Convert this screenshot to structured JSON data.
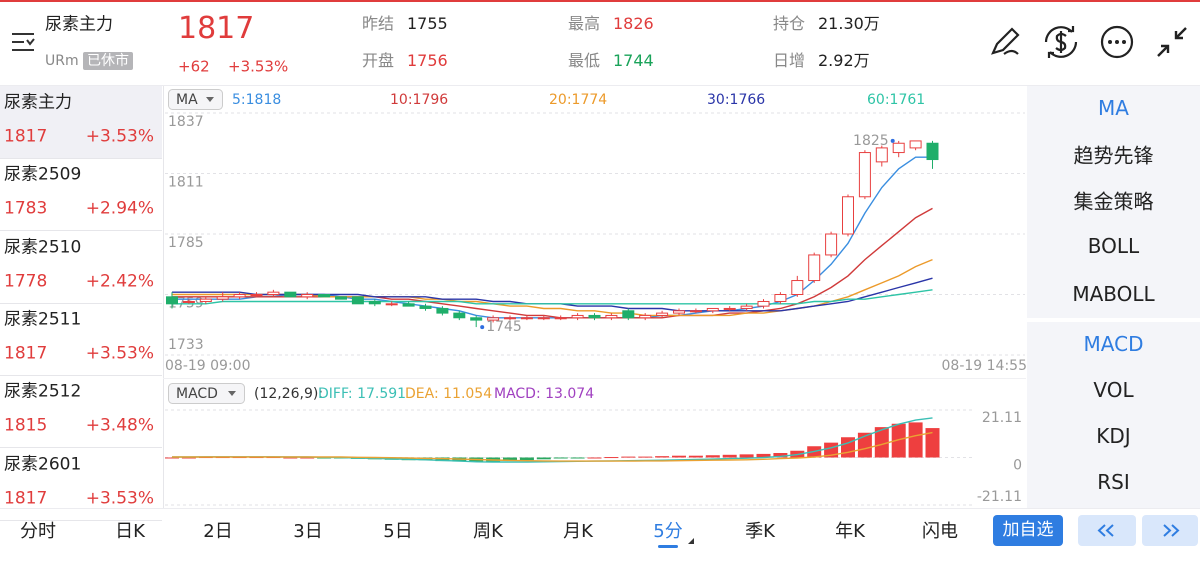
{
  "header": {
    "name": "尿素主力",
    "code": "URm",
    "status": "已休市",
    "price": "1817",
    "change": "+62",
    "change_pct": "+3.53%",
    "stats": [
      {
        "label": "昨结",
        "value": "1755"
      },
      {
        "label": "开盘",
        "value": "1756"
      },
      {
        "label": "最高",
        "value": "1826"
      },
      {
        "label": "最低",
        "value": "1744"
      },
      {
        "label": "持仓",
        "value": "21.30万"
      },
      {
        "label": "日增",
        "value": "2.92万"
      }
    ]
  },
  "watchlist": [
    {
      "name": "尿素主力",
      "price": "1817",
      "pct": "+3.53%"
    },
    {
      "name": "尿素2509",
      "price": "1783",
      "pct": "+2.94%"
    },
    {
      "name": "尿素2510",
      "price": "1778",
      "pct": "+2.42%"
    },
    {
      "name": "尿素2511",
      "price": "1817",
      "pct": "+3.53%"
    },
    {
      "name": "尿素2512",
      "price": "1815",
      "pct": "+3.48%"
    },
    {
      "name": "尿素2601",
      "price": "1817",
      "pct": "+3.53%"
    }
  ],
  "chart_data": [
    {
      "type": "candlestick",
      "indicator": "MA",
      "ylim": [
        1733,
        1837
      ],
      "yticks": [
        1733,
        1759,
        1785,
        1811,
        1837
      ],
      "grid": true,
      "up_color": "#e84040",
      "down_color": "#1fae6a",
      "high_label": 1825,
      "low_label": 1745,
      "categories": [
        "08-19 09:00",
        null,
        null,
        null,
        null,
        null,
        null,
        null,
        null,
        null,
        null,
        null,
        null,
        null,
        null,
        null,
        null,
        null,
        null,
        null,
        null,
        null,
        null,
        null,
        null,
        null,
        null,
        null,
        null,
        null,
        null,
        null,
        null,
        null,
        null,
        null,
        null,
        null,
        null,
        null,
        null,
        null,
        null,
        null,
        null,
        "08-19 14:55"
      ],
      "ohlc": [
        [
          1758,
          1760,
          1753,
          1755
        ],
        [
          1756,
          1757,
          1755,
          1756
        ],
        [
          1756,
          1758,
          1755,
          1757
        ],
        [
          1757,
          1760,
          1756,
          1758
        ],
        [
          1758,
          1760,
          1757,
          1759
        ],
        [
          1759,
          1760,
          1758,
          1759
        ],
        [
          1759,
          1761,
          1758,
          1760
        ],
        [
          1760,
          1760,
          1758,
          1758
        ],
        [
          1758,
          1760,
          1757,
          1759
        ],
        [
          1759,
          1759,
          1758,
          1758
        ],
        [
          1758,
          1758,
          1757,
          1757
        ],
        [
          1758,
          1758,
          1755,
          1755
        ],
        [
          1756,
          1757,
          1754,
          1755
        ],
        [
          1755,
          1756,
          1754,
          1755
        ],
        [
          1755,
          1756,
          1754,
          1754
        ],
        [
          1754,
          1755,
          1752,
          1753
        ],
        [
          1753,
          1754,
          1750,
          1751
        ],
        [
          1751,
          1752,
          1748,
          1749
        ],
        [
          1749,
          1750,
          1745,
          1748
        ],
        [
          1748,
          1750,
          1747,
          1749
        ],
        [
          1749,
          1750,
          1748,
          1749
        ],
        [
          1749,
          1750,
          1748,
          1749
        ],
        [
          1749,
          1750,
          1748,
          1749
        ],
        [
          1749,
          1750,
          1748,
          1749
        ],
        [
          1749,
          1751,
          1748,
          1750
        ],
        [
          1750,
          1751,
          1748,
          1749
        ],
        [
          1749,
          1751,
          1748,
          1750
        ],
        [
          1752,
          1753,
          1748,
          1749
        ],
        [
          1749,
          1751,
          1748,
          1750
        ],
        [
          1750,
          1752,
          1749,
          1751
        ],
        [
          1751,
          1753,
          1750,
          1752
        ],
        [
          1752,
          1753,
          1751,
          1752
        ],
        [
          1752,
          1753,
          1751,
          1753
        ],
        [
          1753,
          1754,
          1752,
          1753
        ],
        [
          1753,
          1755,
          1752,
          1754
        ],
        [
          1754,
          1757,
          1753,
          1756
        ],
        [
          1756,
          1760,
          1755,
          1759
        ],
        [
          1759,
          1767,
          1758,
          1765
        ],
        [
          1765,
          1777,
          1764,
          1776
        ],
        [
          1776,
          1786,
          1775,
          1785
        ],
        [
          1785,
          1802,
          1784,
          1801
        ],
        [
          1801,
          1821,
          1800,
          1820
        ],
        [
          1816,
          1823,
          1814,
          1822
        ],
        [
          1820,
          1825,
          1818,
          1824
        ],
        [
          1822,
          1825,
          1821,
          1825
        ],
        [
          1824,
          1825,
          1813,
          1817
        ]
      ],
      "series": [
        {
          "name": "5:1818",
          "color": "#3a8ee0",
          "values": [
            1757,
            1757,
            1757,
            1757,
            1757,
            1758,
            1758,
            1759,
            1759,
            1759,
            1758,
            1757,
            1757,
            1756,
            1755,
            1754,
            1753,
            1752,
            1750,
            1749,
            1749,
            1749,
            1749,
            1749,
            1749,
            1749,
            1749,
            1749,
            1749,
            1750,
            1750,
            1751,
            1752,
            1752,
            1753,
            1754,
            1756,
            1759,
            1765,
            1772,
            1781,
            1794,
            1805,
            1813,
            1818,
            1818
          ]
        },
        {
          "name": "10:1796",
          "color": "#d03a3a",
          "values": [
            1758,
            1758,
            1758,
            1758,
            1758,
            1758,
            1758,
            1758,
            1758,
            1758,
            1758,
            1758,
            1758,
            1757,
            1757,
            1756,
            1755,
            1754,
            1753,
            1752,
            1751,
            1750,
            1750,
            1749,
            1749,
            1749,
            1749,
            1749,
            1749,
            1749,
            1750,
            1750,
            1750,
            1751,
            1751,
            1752,
            1753,
            1755,
            1758,
            1762,
            1767,
            1774,
            1780,
            1786,
            1792,
            1796
          ]
        },
        {
          "name": "20:1774",
          "color": "#ec9a2a",
          "values": [
            1759,
            1759,
            1759,
            1759,
            1759,
            1759,
            1759,
            1759,
            1759,
            1758,
            1758,
            1758,
            1758,
            1758,
            1758,
            1757,
            1757,
            1756,
            1756,
            1755,
            1754,
            1754,
            1753,
            1753,
            1752,
            1752,
            1751,
            1751,
            1750,
            1750,
            1750,
            1750,
            1750,
            1750,
            1751,
            1751,
            1752,
            1753,
            1754,
            1756,
            1758,
            1761,
            1764,
            1767,
            1771,
            1774
          ]
        },
        {
          "name": "30:1766",
          "color": "#2a35a8",
          "values": [
            1760,
            1760,
            1760,
            1760,
            1760,
            1759,
            1759,
            1759,
            1759,
            1759,
            1759,
            1759,
            1758,
            1758,
            1758,
            1758,
            1757,
            1757,
            1757,
            1756,
            1756,
            1755,
            1755,
            1755,
            1754,
            1754,
            1754,
            1753,
            1753,
            1753,
            1752,
            1752,
            1752,
            1752,
            1752,
            1752,
            1752,
            1753,
            1754,
            1755,
            1756,
            1758,
            1760,
            1762,
            1764,
            1766
          ]
        },
        {
          "name": "60:1761",
          "color": "#2ec4a6",
          "values": [
            1755,
            1755,
            1755,
            1756,
            1756,
            1756,
            1756,
            1756,
            1756,
            1756,
            1756,
            1756,
            1756,
            1756,
            1756,
            1756,
            1756,
            1756,
            1755,
            1755,
            1755,
            1755,
            1755,
            1755,
            1755,
            1755,
            1755,
            1755,
            1755,
            1755,
            1755,
            1755,
            1755,
            1755,
            1755,
            1755,
            1755,
            1755,
            1756,
            1756,
            1757,
            1757,
            1758,
            1759,
            1760,
            1761
          ]
        }
      ]
    },
    {
      "type": "macd",
      "indicator": "MACD",
      "params": "(12,26,9):",
      "ylim": [
        -21.11,
        21.11
      ],
      "yticks": [
        -21.11,
        0,
        21.11
      ],
      "grid": true,
      "up_color": "#ee3f3f",
      "down_color": "#2aa860",
      "series": [
        {
          "name": "DIFF: 17.591",
          "color": "#3bbfb5",
          "kind": "line",
          "values": [
            0.2,
            0.2,
            0.3,
            0.3,
            0.3,
            0.3,
            0.3,
            0.2,
            0.2,
            0.1,
            0,
            -0.2,
            -0.4,
            -0.6,
            -0.8,
            -1,
            -1.3,
            -1.6,
            -1.9,
            -2,
            -2,
            -2,
            -1.9,
            -1.8,
            -1.7,
            -1.6,
            -1.5,
            -1.4,
            -1.3,
            -1.2,
            -1,
            -0.9,
            -0.7,
            -0.5,
            -0.3,
            0,
            0.5,
            1.3,
            2.7,
            4.3,
            6.5,
            9.5,
            12.3,
            14.8,
            16.6,
            17.591
          ]
        },
        {
          "name": "DEA: 11.054",
          "color": "#eaa233",
          "kind": "line",
          "values": [
            0.2,
            0.2,
            0.2,
            0.2,
            0.2,
            0.2,
            0.2,
            0.2,
            0.2,
            0.2,
            0.2,
            0.1,
            0,
            -0.1,
            -0.2,
            -0.4,
            -0.5,
            -0.7,
            -0.9,
            -1.1,
            -1.3,
            -1.4,
            -1.5,
            -1.6,
            -1.6,
            -1.6,
            -1.6,
            -1.6,
            -1.5,
            -1.5,
            -1.4,
            -1.3,
            -1.2,
            -1.1,
            -1,
            -0.8,
            -0.5,
            -0.2,
            0.2,
            1,
            2.3,
            3.9,
            5.8,
            7.9,
            9.7,
            11.054
          ]
        },
        {
          "name": "MACD: 13.074",
          "color": "#a040c0",
          "kind": "bar",
          "values": [
            0,
            0,
            0.2,
            0.2,
            0.2,
            0.2,
            0.2,
            0,
            0,
            -0.2,
            -0.4,
            -0.6,
            -0.8,
            -1,
            -1.2,
            -1.2,
            -1.6,
            -1.8,
            -2,
            -1.8,
            -1.4,
            -1.2,
            -0.8,
            -0.4,
            -0.2,
            0,
            0.2,
            0.4,
            0.4,
            0.6,
            0.8,
            0.8,
            1,
            1.2,
            1.4,
            1.6,
            2,
            3,
            5,
            6.6,
            9,
            11,
            13.5,
            15,
            15.6,
            13.074
          ]
        }
      ]
    }
  ],
  "indicator_menu": {
    "main": [
      "MA",
      "趋势先锋",
      "集金策略",
      "BOLL",
      "MABOLL"
    ],
    "sub": [
      "MACD",
      "VOL",
      "KDJ",
      "RSI"
    ]
  },
  "tabs": [
    "分时",
    "日K",
    "2日",
    "3日",
    "5日",
    "周K",
    "月K",
    "5分",
    "季K",
    "年K",
    "闪电"
  ],
  "active_tab": "5分",
  "add_button": "加自选"
}
